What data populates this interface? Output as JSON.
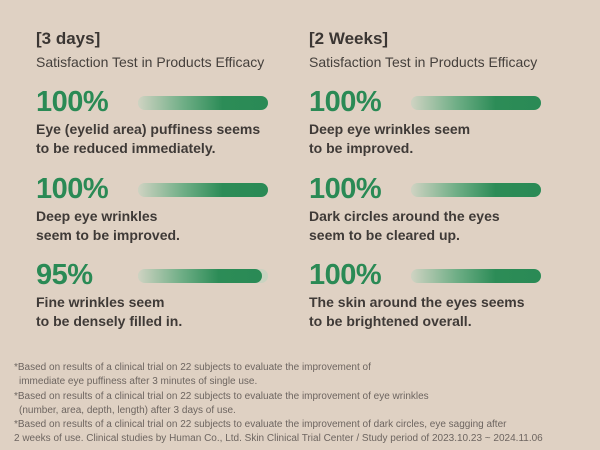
{
  "colors": {
    "background": "#dfd1c3",
    "accent": "#2a8a55"
  },
  "columns": [
    {
      "period": "[3 days]",
      "subtitle": "Satisfaction Test in Products Efficacy",
      "items": [
        {
          "percent": "100%",
          "value": 100,
          "line1": "Eye (eyelid area) puffiness seems",
          "line2": "to be reduced immediately."
        },
        {
          "percent": "100%",
          "value": 100,
          "line1": "Deep eye wrinkles",
          "line2": "seem to be improved."
        },
        {
          "percent": "95%",
          "value": 95,
          "line1": "Fine wrinkles seem",
          "line2": "to be densely filled in."
        }
      ]
    },
    {
      "period": "[2 Weeks]",
      "subtitle": "Satisfaction Test in Products Efficacy",
      "items": [
        {
          "percent": "100%",
          "value": 100,
          "line1": "Deep eye wrinkles seem",
          "line2": "to be improved."
        },
        {
          "percent": "100%",
          "value": 100,
          "line1": "Dark circles around the eyes",
          "line2": "seem to be cleared up."
        },
        {
          "percent": "100%",
          "value": 100,
          "line1": "The skin around the eyes seems",
          "line2": "to be brightened overall."
        }
      ]
    }
  ],
  "footnotes": [
    "*Based on results of a clinical trial on 22 subjects to evaluate the improvement of",
    "immediate eye puffiness after 3 minutes of single use.",
    "*Based on results of a clinical trial on 22 subjects to evaluate the improvement of eye wrinkles",
    "(number, area, depth, length) after 3 days of use.",
    "*Based on results of a clinical trial on 22 subjects to evaluate the improvement of dark circles, eye sagging after",
    "2 weeks of use. Clinical studies by Human Co., Ltd. Skin Clinical Trial Center / Study period of 2023.10.23 ~ 2024.11.06"
  ]
}
